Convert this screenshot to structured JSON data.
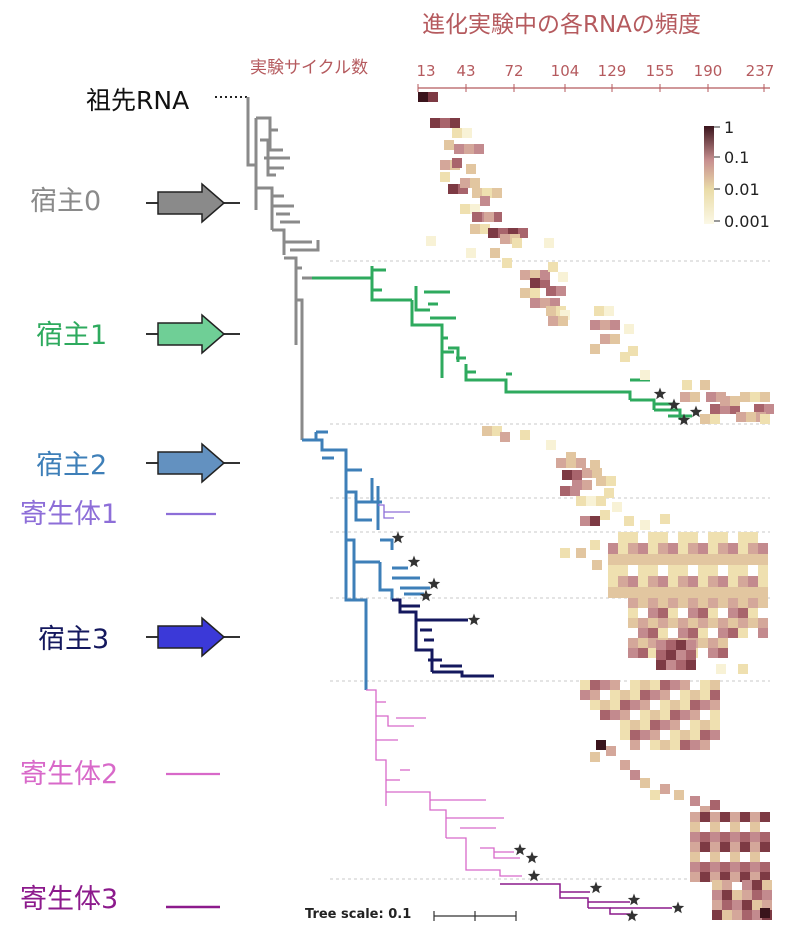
{
  "heatmap": {
    "title": "進化実験中の各RNAの頻度",
    "cycle_label": "実験サイクル数",
    "cycles": [
      "13",
      "43",
      "72",
      "104",
      "129",
      "155",
      "190",
      "237"
    ],
    "legend_ticks": [
      "1",
      "0.1",
      "0.01",
      "0.001"
    ]
  },
  "tree": {
    "ancestor_label": "祖先RNA",
    "scale_label": "Tree scale: 0.1"
  },
  "lineages": [
    {
      "key": "host0",
      "label": "宿主0",
      "color": "#8a8a8a"
    },
    {
      "key": "host1",
      "label": "宿主1",
      "color": "#2eaa5e"
    },
    {
      "key": "host2",
      "label": "宿主2",
      "color": "#3e7fb8"
    },
    {
      "key": "parasite1",
      "label": "寄生体1",
      "color": "#8d6ed8"
    },
    {
      "key": "host3",
      "label": "宿主3",
      "color": "#14185e"
    },
    {
      "key": "parasite2",
      "label": "寄生体2",
      "color": "#d869c9"
    },
    {
      "key": "parasite3",
      "label": "寄生体3",
      "color": "#8c1a8c"
    }
  ],
  "colors": {
    "heat_text": "#b55a5e",
    "host0_arrow": "#8a8a8a",
    "host1_arrow": "#6fcf96",
    "host2_arrow": "#6391c0",
    "host3_arrow": "#3b39d8",
    "heat_low": "#f3ecc8",
    "heat_high": "#3a141c"
  }
}
